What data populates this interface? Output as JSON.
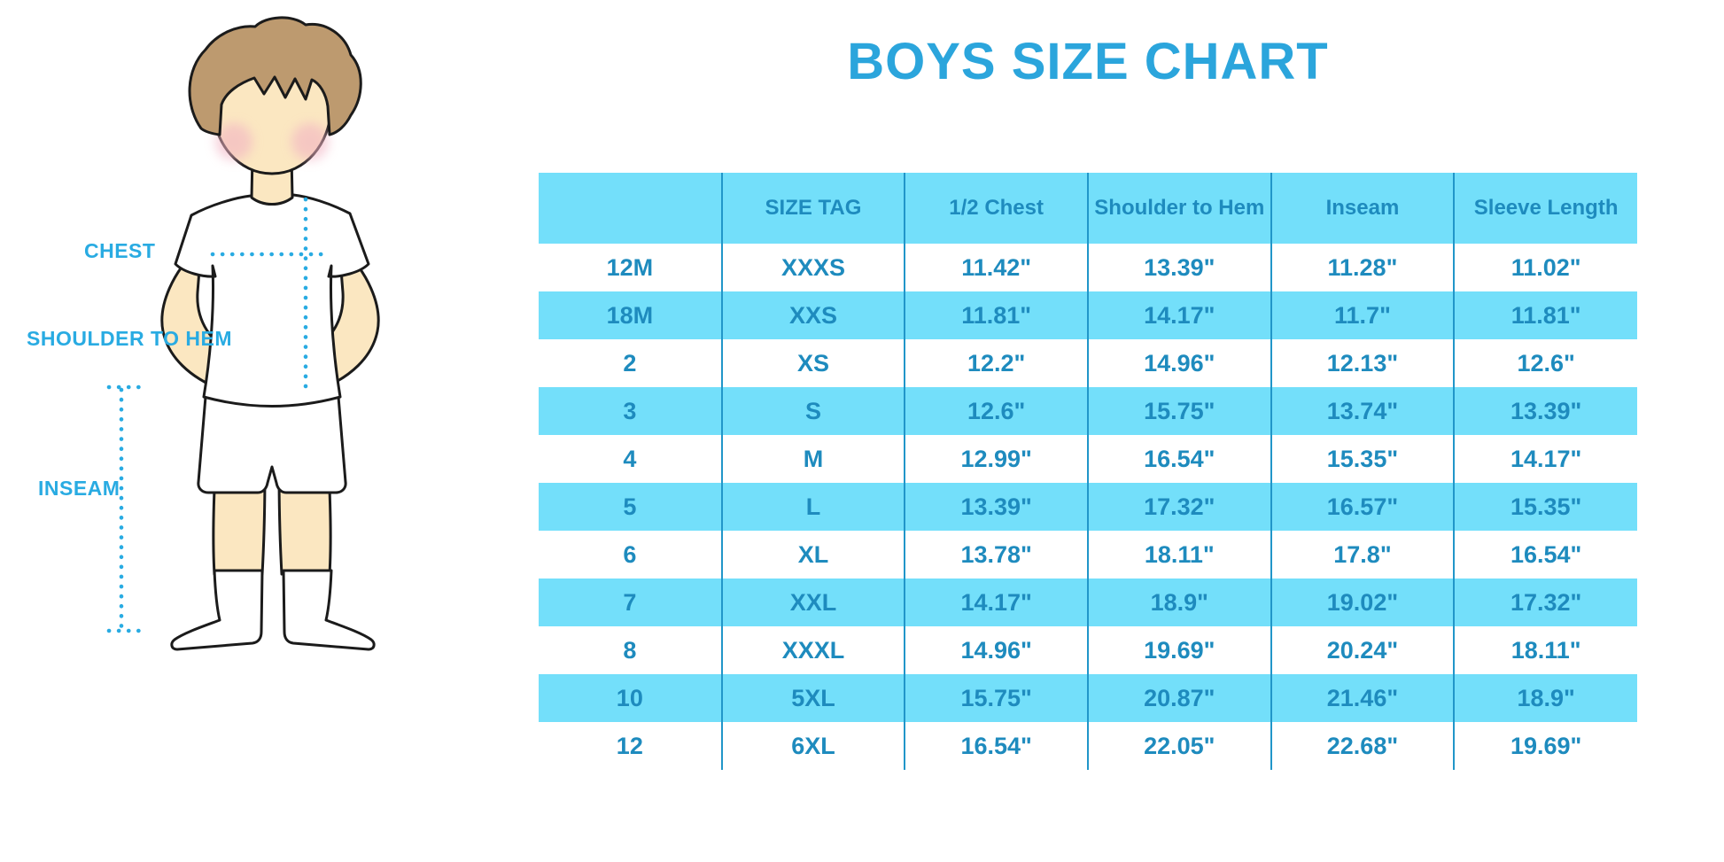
{
  "title": "BOYS SIZE CHART",
  "diagram": {
    "name": "boy-measurement-illustration",
    "chest_label": "CHEST",
    "shoulder_to_hem_label": "SHOULDER TO HEM",
    "inseam_label": "INSEAM"
  },
  "colors": {
    "row_and_header_cyan": "#73dffa",
    "table_text_blue": "#1e8bbe",
    "title_blue": "#2ba5dc",
    "label_blue": "#29abe2",
    "divider_blue": "#2196c9",
    "skin": "#fbe7c1",
    "hair": "#bd9a6f",
    "cheek": "#f2b3c3"
  },
  "chart_data": {
    "type": "table",
    "title": "BOYS SIZE CHART",
    "columns": [
      "",
      "SIZE TAG",
      "1/2 Chest",
      "Shoulder to Hem",
      "Inseam",
      "Sleeve Length"
    ],
    "rows": [
      [
        "12M",
        "XXXS",
        "11.42\"",
        "13.39\"",
        "11.28\"",
        "11.02\""
      ],
      [
        "18M",
        "XXS",
        "11.81\"",
        "14.17\"",
        "11.7\"",
        "11.81\""
      ],
      [
        "2",
        "XS",
        "12.2\"",
        "14.96\"",
        "12.13\"",
        "12.6\""
      ],
      [
        "3",
        "S",
        "12.6\"",
        "15.75\"",
        "13.74\"",
        "13.39\""
      ],
      [
        "4",
        "M",
        "12.99\"",
        "16.54\"",
        "15.35\"",
        "14.17\""
      ],
      [
        "5",
        "L",
        "13.39\"",
        "17.32\"",
        "16.57\"",
        "15.35\""
      ],
      [
        "6",
        "XL",
        "13.78\"",
        "18.11\"",
        "17.8\"",
        "16.54\""
      ],
      [
        "7",
        "XXL",
        "14.17\"",
        "18.9\"",
        "19.02\"",
        "17.32\""
      ],
      [
        "8",
        "XXXL",
        "14.96\"",
        "19.69\"",
        "20.24\"",
        "18.11\""
      ],
      [
        "10",
        "5XL",
        "15.75\"",
        "20.87\"",
        "21.46\"",
        "18.9\""
      ],
      [
        "12",
        "6XL",
        "16.54\"",
        "22.05\"",
        "22.68\"",
        "19.69\""
      ]
    ]
  }
}
